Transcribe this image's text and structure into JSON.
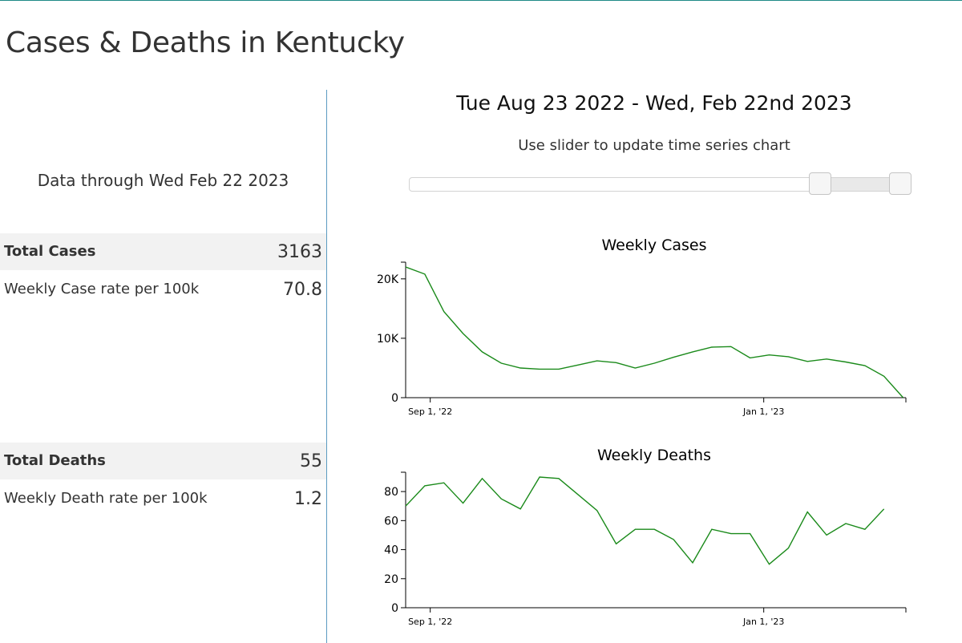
{
  "page": {
    "title": "Cases & Deaths in Kentucky"
  },
  "summary": {
    "data_through": "Data through Wed Feb 22 2023",
    "total_cases_label": "Total Cases",
    "total_cases_value": "3163",
    "weekly_case_rate_label": "Weekly Case rate per 100k",
    "weekly_case_rate_value": "70.8",
    "total_deaths_label": "Total Deaths",
    "total_deaths_value": "55",
    "weekly_death_rate_label": "Weekly Death rate per 100k",
    "weekly_death_rate_value": "1.2"
  },
  "controls": {
    "date_range": "Tue Aug 23 2022 - Wed, Feb 22nd 2023",
    "slider_hint": "Use slider to update time series chart",
    "slider": {
      "start_fraction": 0.82,
      "end_fraction": 0.98
    }
  },
  "colors": {
    "line": "#1a8a1a",
    "accent": "#1f8a86"
  },
  "chart_data": [
    {
      "type": "line",
      "title": "Weekly Cases",
      "xlabel": "",
      "ylabel": "",
      "ylim": [
        0,
        22000
      ],
      "y_ticks": [
        0,
        10000,
        20000
      ],
      "y_tick_labels": [
        "0",
        "10K",
        "20K"
      ],
      "xlim": [
        "2022-08-23",
        "2023-02-22"
      ],
      "x_ticks": [
        "2022-09-01",
        "2023-01-01"
      ],
      "x_tick_labels": [
        "Sep 1, '22",
        "Jan 1, '23"
      ],
      "grid": false,
      "series": [
        {
          "x": [
            "2022-08-23",
            "2022-08-30",
            "2022-09-06",
            "2022-09-13",
            "2022-09-20",
            "2022-09-27",
            "2022-10-04",
            "2022-10-11",
            "2022-10-18",
            "2022-10-25",
            "2022-11-01",
            "2022-11-08",
            "2022-11-15",
            "2022-11-22",
            "2022-11-29",
            "2022-12-06",
            "2022-12-13",
            "2022-12-20",
            "2022-12-27",
            "2023-01-03",
            "2023-01-10",
            "2023-01-17",
            "2023-01-24",
            "2023-01-31",
            "2023-02-07",
            "2023-02-14",
            "2023-02-21"
          ],
          "values": [
            22000,
            20800,
            14500,
            10800,
            7700,
            5800,
            5000,
            4800,
            4800,
            5500,
            6200,
            5900,
            5000,
            5800,
            6800,
            7700,
            8500,
            8600,
            6700,
            7200,
            6900,
            6100,
            6500,
            6000,
            5400,
            3600,
            0
          ]
        }
      ]
    },
    {
      "type": "line",
      "title": "Weekly Deaths",
      "xlabel": "",
      "ylabel": "",
      "ylim": [
        0,
        90
      ],
      "y_ticks": [
        0,
        20,
        40,
        60,
        80
      ],
      "y_tick_labels": [
        "0",
        "20",
        "40",
        "60",
        "80"
      ],
      "xlim": [
        "2022-08-23",
        "2023-02-22"
      ],
      "x_ticks": [
        "2022-09-01",
        "2023-01-01"
      ],
      "x_tick_labels": [
        "Sep 1, '22",
        "Jan 1, '23"
      ],
      "grid": false,
      "series": [
        {
          "x": [
            "2022-08-23",
            "2022-08-30",
            "2022-09-06",
            "2022-09-13",
            "2022-09-20",
            "2022-09-27",
            "2022-10-04",
            "2022-10-11",
            "2022-10-18",
            "2022-10-25",
            "2022-11-01",
            "2022-11-08",
            "2022-11-15",
            "2022-11-22",
            "2022-11-29",
            "2022-12-06",
            "2022-12-13",
            "2022-12-20",
            "2022-12-27",
            "2023-01-03",
            "2023-01-10",
            "2023-01-17",
            "2023-01-24",
            "2023-01-31",
            "2023-02-07",
            "2023-02-14"
          ],
          "values": [
            70,
            84,
            86,
            72,
            89,
            75,
            68,
            90,
            89,
            78,
            67,
            44,
            54,
            54,
            47,
            31,
            54,
            51,
            51,
            30,
            41,
            66,
            50,
            58,
            54,
            68
          ]
        }
      ]
    }
  ]
}
